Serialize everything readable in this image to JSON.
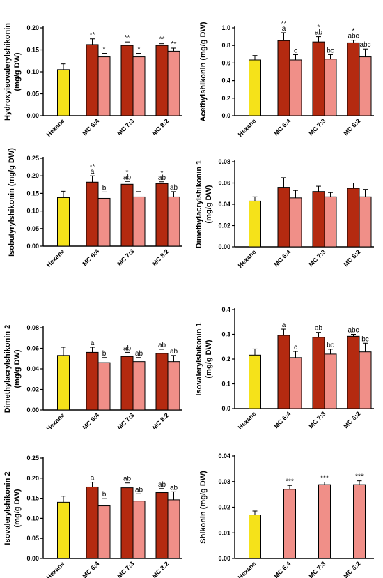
{
  "colors": {
    "hexane": "#F5E21A",
    "mc_dark": "#B42A10",
    "mc_light": "#F08F88",
    "axis": "#000000"
  },
  "chart_data": [
    {
      "type": "bar",
      "ylabel": [
        "Hydroxyisovalerylshikonin",
        "(mg/g DW)"
      ],
      "ylim": [
        0,
        0.2
      ],
      "yticks": [
        "0.00",
        "0.05",
        "0.10",
        "0.15",
        "0.20"
      ],
      "categories": [
        "Hexane",
        "MC 6:4",
        "MC 7:3",
        "MC 8:2"
      ],
      "bars": [
        {
          "category": "Hexane",
          "color": "hexane",
          "value": 0.105,
          "error": 0.013,
          "label": ""
        },
        {
          "category": "MC 6:4",
          "color": "mc_dark",
          "value": 0.162,
          "error": 0.013,
          "label": "**"
        },
        {
          "category": "MC 6:4",
          "color": "mc_light",
          "value": 0.134,
          "error": 0.008,
          "label": "*"
        },
        {
          "category": "MC 7:3",
          "color": "mc_dark",
          "value": 0.16,
          "error": 0.008,
          "label": "**"
        },
        {
          "category": "MC 7:3",
          "color": "mc_light",
          "value": 0.134,
          "error": 0.008,
          "label": "*"
        },
        {
          "category": "MC 8:2",
          "color": "mc_dark",
          "value": 0.16,
          "error": 0.004,
          "label": "**"
        },
        {
          "category": "MC 8:2",
          "color": "mc_light",
          "value": 0.147,
          "error": 0.007,
          "label": "**"
        }
      ]
    },
    {
      "type": "bar",
      "ylabel": [
        "Acethylshikonin (mg/g DW)"
      ],
      "ylim": [
        0,
        1.0
      ],
      "yticks": [
        "0.0",
        "0.2",
        "0.4",
        "0.6",
        "0.8",
        "1.0"
      ],
      "categories": [
        "Hexane",
        "MC 6:4",
        "MC 7:3",
        "MC 8:2"
      ],
      "bars": [
        {
          "category": "Hexane",
          "color": "hexane",
          "value": 0.635,
          "error": 0.05,
          "label": ""
        },
        {
          "category": "MC 6:4",
          "color": "mc_dark",
          "value": 0.855,
          "error": 0.09,
          "label": "a",
          "star": "**"
        },
        {
          "category": "MC 6:4",
          "color": "mc_light",
          "value": 0.635,
          "error": 0.06,
          "label": "c"
        },
        {
          "category": "MC 7:3",
          "color": "mc_dark",
          "value": 0.84,
          "error": 0.06,
          "label": "ab",
          "star": "*"
        },
        {
          "category": "MC 7:3",
          "color": "mc_light",
          "value": 0.645,
          "error": 0.05,
          "label": "bc"
        },
        {
          "category": "MC 8:2",
          "color": "mc_dark",
          "value": 0.83,
          "error": 0.03,
          "label": "abc",
          "star": "*"
        },
        {
          "category": "MC 8:2",
          "color": "mc_light",
          "value": 0.67,
          "error": 0.09,
          "label": "abc"
        }
      ]
    },
    {
      "type": "bar",
      "ylabel": [
        "Isobutyrylshikonin (mg/g DW)"
      ],
      "ylim": [
        0,
        0.25
      ],
      "yticks": [
        "0.00",
        "0.05",
        "0.10",
        "0.15",
        "0.20",
        "0.25"
      ],
      "categories": [
        "Hexane",
        "MC 6:4",
        "MC 7:3",
        "MC 8:2"
      ],
      "bars": [
        {
          "category": "Hexane",
          "color": "hexane",
          "value": 0.138,
          "error": 0.018,
          "label": ""
        },
        {
          "category": "MC 6:4",
          "color": "mc_dark",
          "value": 0.182,
          "error": 0.018,
          "label": "a",
          "star": "**"
        },
        {
          "category": "MC 6:4",
          "color": "mc_light",
          "value": 0.136,
          "error": 0.018,
          "label": "b"
        },
        {
          "category": "MC 7:3",
          "color": "mc_dark",
          "value": 0.176,
          "error": 0.008,
          "label": "ab",
          "star": "*"
        },
        {
          "category": "MC 7:3",
          "color": "mc_light",
          "value": 0.14,
          "error": 0.015,
          "label": ""
        },
        {
          "category": "MC 8:2",
          "color": "mc_dark",
          "value": 0.178,
          "error": 0.005,
          "label": "ab",
          "star": "*"
        },
        {
          "category": "MC 8:2",
          "color": "mc_light",
          "value": 0.14,
          "error": 0.015,
          "label": "ab"
        }
      ]
    },
    {
      "type": "bar",
      "ylabel": [
        "Dimethylacrylshikonin 1",
        "(mg/g DW)"
      ],
      "ylim": [
        0,
        0.08
      ],
      "yticks": [
        "0.00",
        "0.02",
        "0.04",
        "0.06",
        "0.08"
      ],
      "categories": [
        "Hexane",
        "MC 6:4",
        "MC 7:3",
        "MC 8:2"
      ],
      "bars": [
        {
          "category": "Hexane",
          "color": "hexane",
          "value": 0.043,
          "error": 0.004,
          "label": ""
        },
        {
          "category": "MC 6:4",
          "color": "mc_dark",
          "value": 0.056,
          "error": 0.009,
          "label": ""
        },
        {
          "category": "MC 6:4",
          "color": "mc_light",
          "value": 0.046,
          "error": 0.007,
          "label": ""
        },
        {
          "category": "MC 7:3",
          "color": "mc_dark",
          "value": 0.052,
          "error": 0.005,
          "label": ""
        },
        {
          "category": "MC 7:3",
          "color": "mc_light",
          "value": 0.047,
          "error": 0.004,
          "label": ""
        },
        {
          "category": "MC 8:2",
          "color": "mc_dark",
          "value": 0.055,
          "error": 0.005,
          "label": ""
        },
        {
          "category": "MC 8:2",
          "color": "mc_light",
          "value": 0.047,
          "error": 0.007,
          "label": ""
        }
      ]
    },
    {
      "type": "bar",
      "ylabel": [
        "Dimethylacrylshikonin 2",
        "(mg/g DW)"
      ],
      "ylim": [
        0,
        0.08
      ],
      "yticks": [
        "0.00",
        "0.02",
        "0.04",
        "0.06",
        "0.08"
      ],
      "categories": [
        "Hexane",
        "MC 6:4",
        "MC 7:3",
        "MC 8:2"
      ],
      "bars": [
        {
          "category": "Hexane",
          "color": "hexane",
          "value": 0.053,
          "error": 0.008,
          "label": ""
        },
        {
          "category": "MC 6:4",
          "color": "mc_dark",
          "value": 0.056,
          "error": 0.005,
          "label": "a"
        },
        {
          "category": "MC 6:4",
          "color": "mc_light",
          "value": 0.046,
          "error": 0.005,
          "label": "b"
        },
        {
          "category": "MC 7:3",
          "color": "mc_dark",
          "value": 0.052,
          "error": 0.004,
          "label": "ab"
        },
        {
          "category": "MC 7:3",
          "color": "mc_light",
          "value": 0.047,
          "error": 0.004,
          "label": "ab"
        },
        {
          "category": "MC 8:2",
          "color": "mc_dark",
          "value": 0.055,
          "error": 0.004,
          "label": "ab"
        },
        {
          "category": "MC 8:2",
          "color": "mc_light",
          "value": 0.047,
          "error": 0.006,
          "label": "ab"
        }
      ]
    },
    {
      "type": "bar",
      "ylabel": [
        "Isovalerylshikonin 1",
        "(mg/g DW)"
      ],
      "ylim": [
        0,
        0.4
      ],
      "yticks": [
        "0.0",
        "0.1",
        "0.2",
        "0.3",
        "0.4"
      ],
      "categories": [
        "Hexane",
        "MC 6:4",
        "MC 7:3",
        "MC 8:2"
      ],
      "bars": [
        {
          "category": "Hexane",
          "color": "hexane",
          "value": 0.216,
          "error": 0.025,
          "label": ""
        },
        {
          "category": "MC 6:4",
          "color": "mc_dark",
          "value": 0.296,
          "error": 0.025,
          "label": "a"
        },
        {
          "category": "MC 6:4",
          "color": "mc_light",
          "value": 0.206,
          "error": 0.025,
          "label": "c"
        },
        {
          "category": "MC 7:3",
          "color": "mc_dark",
          "value": 0.288,
          "error": 0.02,
          "label": "ab"
        },
        {
          "category": "MC 7:3",
          "color": "mc_light",
          "value": 0.22,
          "error": 0.02,
          "label": "bc"
        },
        {
          "category": "MC 8:2",
          "color": "mc_dark",
          "value": 0.292,
          "error": 0.008,
          "label": "abc"
        },
        {
          "category": "MC 8:2",
          "color": "mc_light",
          "value": 0.229,
          "error": 0.035,
          "label": "bc"
        }
      ]
    },
    {
      "type": "bar",
      "ylabel": [
        "Isovalerylshikonin 2",
        "(mg/g DW)"
      ],
      "ylim": [
        0,
        0.25
      ],
      "yticks": [
        "0.00",
        "0.05",
        "0.10",
        "0.15",
        "0.20",
        "0.25"
      ],
      "categories": [
        "Hexane",
        "MC 6:4",
        "MC 7:3",
        "MC 8:2"
      ],
      "bars": [
        {
          "category": "Hexane",
          "color": "hexane",
          "value": 0.14,
          "error": 0.015,
          "label": ""
        },
        {
          "category": "MC 6:4",
          "color": "mc_dark",
          "value": 0.178,
          "error": 0.012,
          "label": "a"
        },
        {
          "category": "MC 6:4",
          "color": "mc_light",
          "value": 0.131,
          "error": 0.018,
          "label": "b"
        },
        {
          "category": "MC 7:3",
          "color": "mc_dark",
          "value": 0.176,
          "error": 0.012,
          "label": "ab"
        },
        {
          "category": "MC 7:3",
          "color": "mc_light",
          "value": 0.143,
          "error": 0.018,
          "label": "ab"
        },
        {
          "category": "MC 8:2",
          "color": "mc_dark",
          "value": 0.164,
          "error": 0.01,
          "label": "ab"
        },
        {
          "category": "MC 8:2",
          "color": "mc_light",
          "value": 0.146,
          "error": 0.02,
          "label": "ab"
        }
      ]
    },
    {
      "type": "bar",
      "ylabel": [
        "Shikonin (mg/g DW)"
      ],
      "ylim": [
        0,
        0.04
      ],
      "yticks": [
        "0.00",
        "0.01",
        "0.02",
        "0.03",
        "0.04"
      ],
      "categories": [
        "Hexane",
        "MC 6:4",
        "MC 7:3",
        "MC 8:2"
      ],
      "bars": [
        {
          "category": "Hexane",
          "color": "hexane",
          "value": 0.017,
          "error": 0.0015,
          "label": ""
        },
        {
          "category": "MC 6:4",
          "color": "mc_light",
          "value": 0.027,
          "error": 0.0015,
          "label": "***"
        },
        {
          "category": "MC 7:3",
          "color": "mc_light",
          "value": 0.0288,
          "error": 0.001,
          "label": "***"
        },
        {
          "category": "MC 8:2",
          "color": "mc_light",
          "value": 0.0288,
          "error": 0.0015,
          "label": "***"
        }
      ]
    }
  ]
}
